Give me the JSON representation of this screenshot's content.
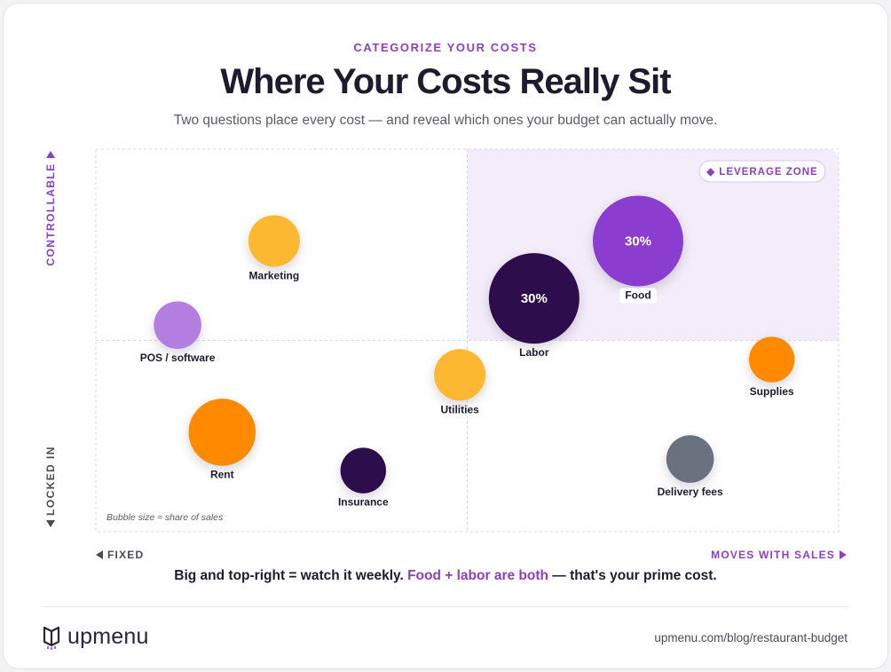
{
  "header": {
    "eyebrow": "CATEGORIZE YOUR COSTS",
    "title": "Where Your Costs Really Sit",
    "subtitle": "Two questions place every cost — and reveal which ones your budget can actually move."
  },
  "chart_data": {
    "type": "scatter",
    "variant": "bubble",
    "x_axis": {
      "low_label": "FIXED",
      "high_label": "MOVES WITH SALES",
      "range": [
        0,
        1
      ],
      "midpoint": 0.5
    },
    "y_axis": {
      "low_label": "LOCKED IN",
      "high_label": "CONTROLLABLE",
      "range": [
        0,
        1
      ],
      "midpoint": 0.5
    },
    "grid": true,
    "highlight_quadrant": {
      "quadrant": "top-right",
      "label": "◆ LEVERAGE ZONE",
      "color": "#f3ecfa"
    },
    "size_note": "Bubble size ≈ share of sales",
    "series": [
      {
        "label": "Marketing",
        "x": 0.24,
        "y": 0.76,
        "size": 0.1,
        "color": "#fdb833",
        "value_label": "",
        "label_tag": false
      },
      {
        "label": "POS / software",
        "x": 0.11,
        "y": 0.54,
        "size": 0.08,
        "color": "#b37ee0",
        "value_label": "",
        "label_tag": false
      },
      {
        "label": "Labor",
        "x": 0.59,
        "y": 0.61,
        "size": 0.3,
        "color": "#2d0a4e",
        "value_label": "30%",
        "label_tag": false
      },
      {
        "label": "Food",
        "x": 0.73,
        "y": 0.76,
        "size": 0.3,
        "color": "#8a3ccf",
        "value_label": "30%",
        "label_tag": true
      },
      {
        "label": "Utilities",
        "x": 0.49,
        "y": 0.41,
        "size": 0.1,
        "color": "#fdb833",
        "value_label": "",
        "label_tag": false
      },
      {
        "label": "Supplies",
        "x": 0.91,
        "y": 0.45,
        "size": 0.07,
        "color": "#ff8a00",
        "value_label": "",
        "label_tag": false
      },
      {
        "label": "Rent",
        "x": 0.17,
        "y": 0.26,
        "size": 0.18,
        "color": "#ff8a00",
        "value_label": "",
        "label_tag": false
      },
      {
        "label": "Insurance",
        "x": 0.36,
        "y": 0.16,
        "size": 0.07,
        "color": "#2d0a4e",
        "value_label": "",
        "label_tag": false
      },
      {
        "label": "Delivery fees",
        "x": 0.8,
        "y": 0.19,
        "size": 0.08,
        "color": "#6b7280",
        "value_label": "",
        "label_tag": false
      }
    ]
  },
  "footnote": {
    "before": "Big and top-right = watch it weekly. ",
    "highlight": "Food + labor are both",
    "after": " — that's your prime cost."
  },
  "footer": {
    "brand": "upmenu",
    "source": "upmenu.com/blog/restaurant-budget"
  }
}
